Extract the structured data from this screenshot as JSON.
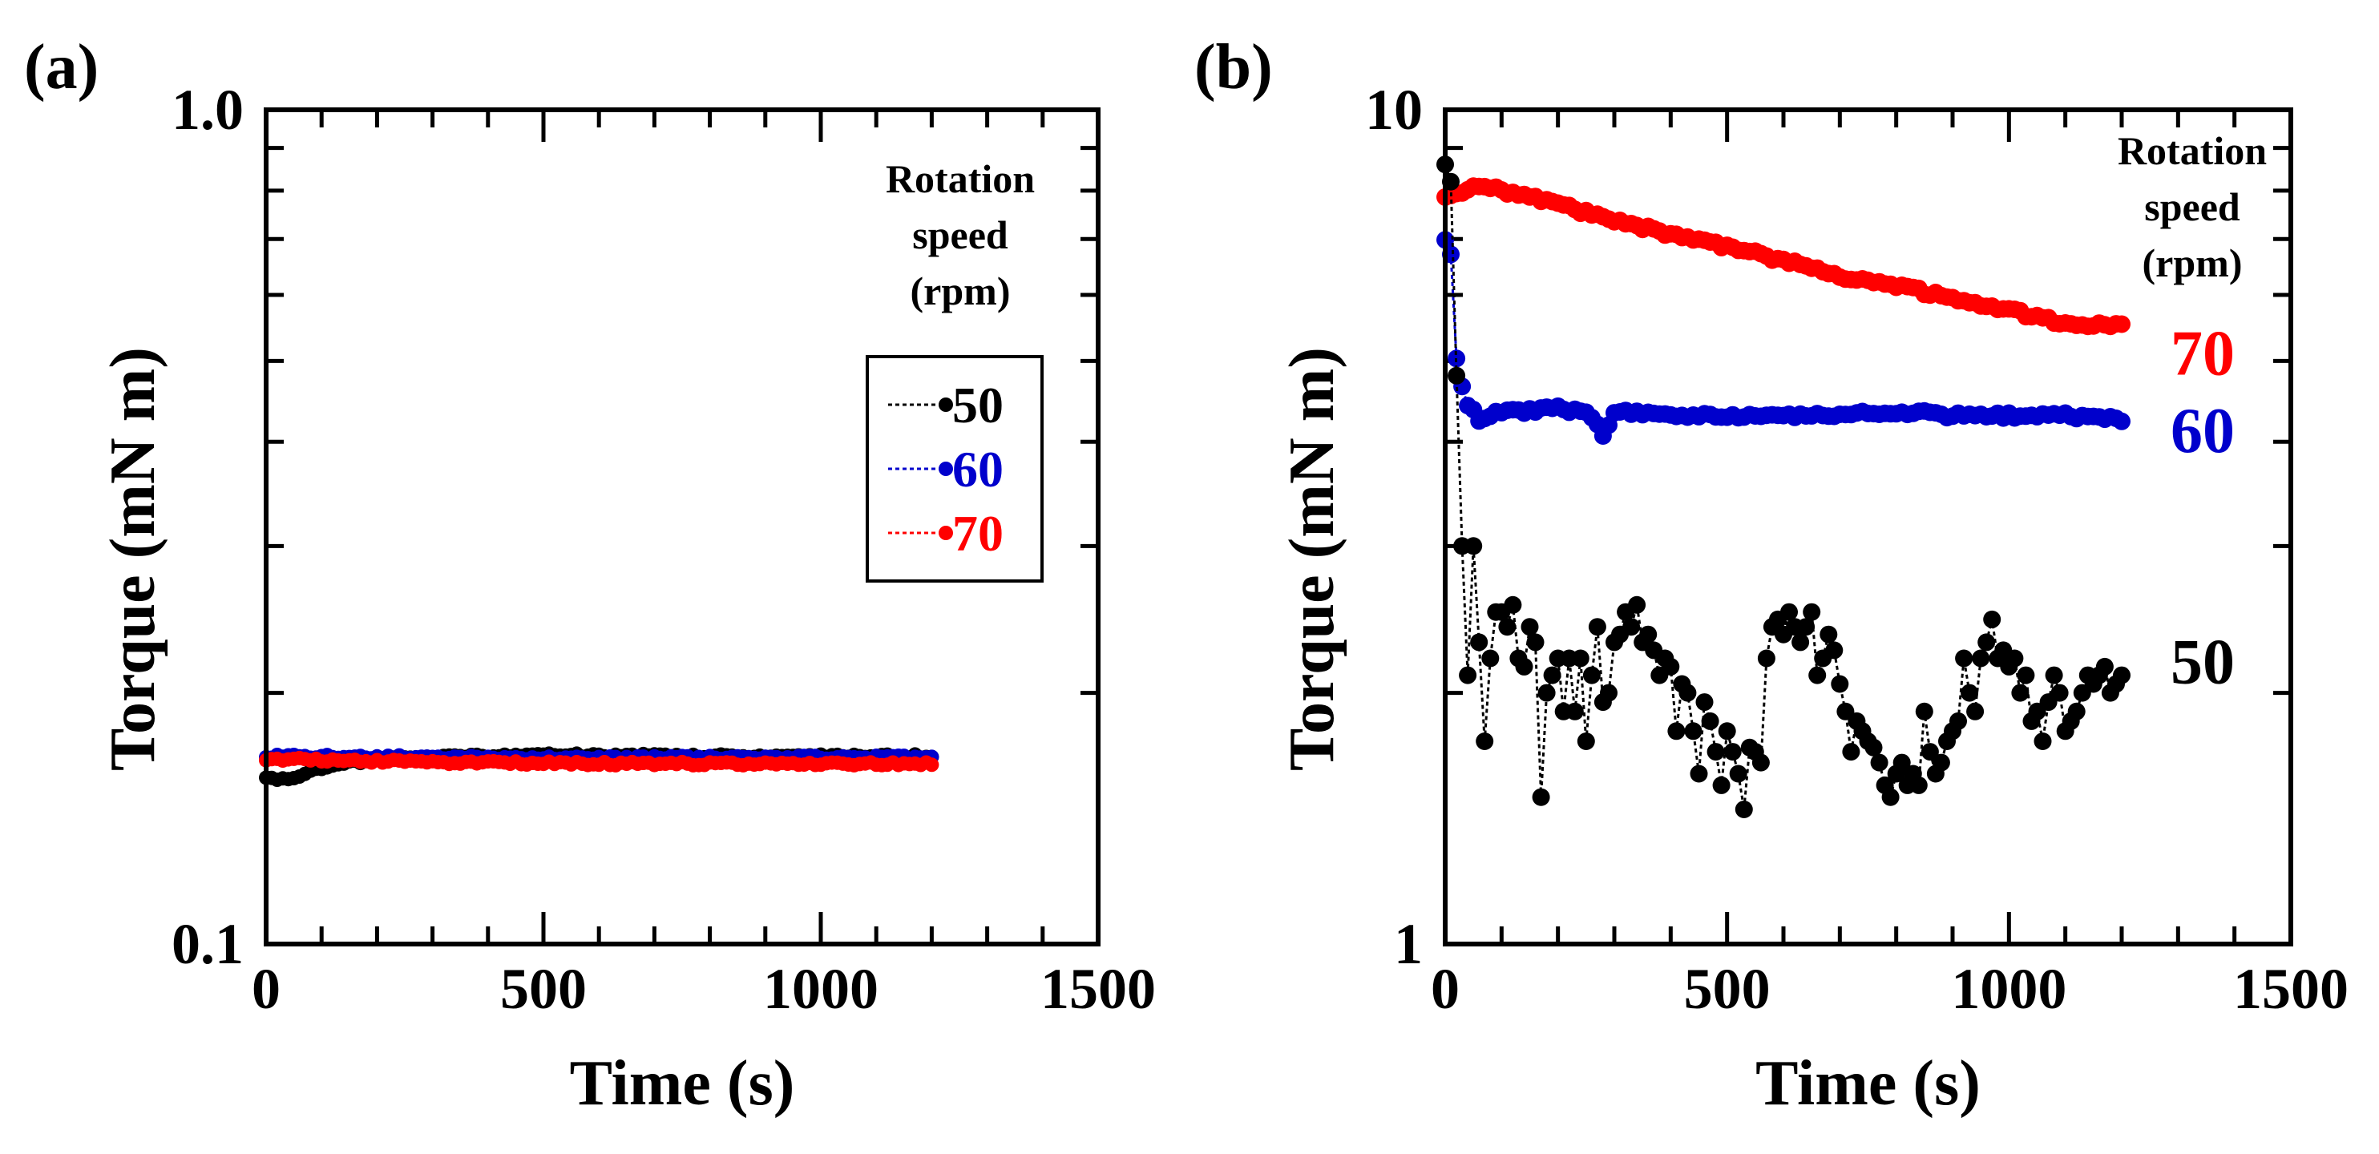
{
  "chart_data": [
    {
      "panel": "(a)",
      "type": "line",
      "marker": "dot",
      "yscale": "log",
      "xlabel": "Time  (s)",
      "ylabel": "Torque  (mN m)",
      "xlim": [
        0,
        1500
      ],
      "ylim": [
        0.1,
        1.0
      ],
      "xticks": [
        "0",
        "500",
        "1000",
        "1500"
      ],
      "yticks": [
        "0.1",
        "1.0"
      ],
      "legend": {
        "title": [
          "Rotation",
          "speed",
          "(rpm)"
        ],
        "placement": "right",
        "boxed": true,
        "entries": [
          "50",
          "60",
          "70"
        ]
      },
      "series": [
        {
          "name": "50",
          "color": "#000000",
          "sample_interval_s": 10,
          "x_start": 0,
          "x_end": 1200,
          "key_points": [
            [
              0,
              0.159
            ],
            [
              10,
              0.1575
            ],
            [
              20,
              0.157
            ],
            [
              40,
              0.1575
            ],
            [
              80,
              0.161
            ],
            [
              120,
              0.164
            ],
            [
              200,
              0.1665
            ],
            [
              300,
              0.1675
            ],
            [
              500,
              0.1685
            ],
            [
              800,
              0.168
            ],
            [
              1200,
              0.168
            ]
          ]
        },
        {
          "name": "60",
          "color": "#0000cc",
          "sample_interval_s": 10,
          "x_start": 0,
          "x_end": 1200,
          "key_points": [
            [
              0,
              0.168
            ],
            [
              300,
              0.1675
            ],
            [
              600,
              0.167
            ],
            [
              900,
              0.1675
            ],
            [
              1200,
              0.1675
            ]
          ]
        },
        {
          "name": "70",
          "color": "#ff0000",
          "sample_interval_s": 10,
          "x_start": 0,
          "x_end": 1200,
          "key_points": [
            [
              0,
              0.1668
            ],
            [
              300,
              0.1652
            ],
            [
              600,
              0.1645
            ],
            [
              900,
              0.1645
            ],
            [
              1200,
              0.1645
            ]
          ]
        }
      ]
    },
    {
      "panel": "(b)",
      "type": "line",
      "marker": "dot",
      "yscale": "log",
      "xlabel": "Time  (s)",
      "ylabel": "Torque  (mN m)",
      "xlim": [
        0,
        1500
      ],
      "ylim": [
        1,
        10
      ],
      "xticks": [
        "0",
        "500",
        "1000",
        "1500"
      ],
      "yticks": [
        "1",
        "10"
      ],
      "legend": {
        "title": [
          "Rotation",
          "speed",
          "(rpm)"
        ],
        "placement": "right",
        "boxed": false,
        "entries": [
          "70",
          "60",
          "50"
        ]
      },
      "series": [
        {
          "name": "70",
          "color": "#ff0000",
          "sample_interval_s": 10,
          "x_start": 0,
          "x_end": 1200,
          "key_points": [
            [
              0,
              7.9
            ],
            [
              30,
              8.0
            ],
            [
              60,
              8.1
            ],
            [
              100,
              8.0
            ],
            [
              200,
              7.7
            ],
            [
              300,
              7.35
            ],
            [
              400,
              7.1
            ],
            [
              500,
              6.85
            ],
            [
              600,
              6.6
            ],
            [
              700,
              6.3
            ],
            [
              800,
              6.15
            ],
            [
              900,
              5.95
            ],
            [
              1000,
              5.75
            ],
            [
              1100,
              5.55
            ],
            [
              1200,
              5.5
            ]
          ]
        },
        {
          "name": "60",
          "color": "#0000cc",
          "sample_interval_s": 10,
          "x_start": 0,
          "x_end": 1200,
          "key_points": [
            [
              0,
              7.0
            ],
            [
              10,
              6.7
            ],
            [
              20,
              5.0
            ],
            [
              30,
              4.65
            ],
            [
              40,
              4.45
            ],
            [
              50,
              4.35
            ],
            [
              60,
              4.25
            ],
            [
              100,
              4.35
            ],
            [
              160,
              4.35
            ],
            [
              200,
              4.4
            ],
            [
              260,
              4.3
            ],
            [
              280,
              4.05
            ],
            [
              300,
              4.35
            ],
            [
              400,
              4.3
            ],
            [
              500,
              4.3
            ],
            [
              600,
              4.3
            ],
            [
              700,
              4.3
            ],
            [
              800,
              4.35
            ],
            [
              900,
              4.3
            ],
            [
              1000,
              4.3
            ],
            [
              1100,
              4.3
            ],
            [
              1200,
              4.25
            ]
          ]
        },
        {
          "name": "50",
          "color": "#000000",
          "sample_interval_s": 10,
          "x_start": 0,
          "x_end": 1200,
          "values": [
            8.6,
            8.2,
            4.8,
            3.0,
            2.1,
            3.0,
            2.3,
            1.75,
            2.2,
            2.5,
            2.5,
            2.4,
            2.55,
            2.2,
            2.15,
            2.4,
            2.3,
            1.5,
            2.0,
            2.1,
            2.2,
            1.9,
            2.2,
            1.9,
            2.2,
            1.75,
            2.1,
            2.4,
            1.95,
            2.0,
            2.3,
            2.35,
            2.5,
            2.4,
            2.55,
            2.3,
            2.35,
            2.25,
            2.1,
            2.2,
            2.15,
            1.8,
            2.05,
            2.0,
            1.8,
            1.6,
            1.95,
            1.85,
            1.7,
            1.55,
            1.8,
            1.7,
            1.6,
            1.45,
            1.72,
            1.7,
            1.65,
            2.2,
            2.4,
            2.45,
            2.35,
            2.5,
            2.4,
            2.3,
            2.4,
            2.5,
            2.1,
            2.2,
            2.35,
            2.25,
            2.05,
            1.9,
            1.7,
            1.85,
            1.8,
            1.75,
            1.72,
            1.65,
            1.55,
            1.5,
            1.6,
            1.65,
            1.55,
            1.6,
            1.55,
            1.9,
            1.7,
            1.6,
            1.65,
            1.75,
            1.8,
            1.85,
            2.2,
            2.0,
            1.9,
            2.2,
            2.3,
            2.45,
            2.2,
            2.25,
            2.15,
            2.2,
            2.0,
            2.1,
            1.85,
            1.9,
            1.75,
            1.95,
            2.1,
            2.0,
            1.8,
            1.85,
            1.9,
            2.0,
            2.1,
            2.05,
            2.1,
            2.15,
            2.0,
            2.05,
            2.1
          ]
        }
      ]
    }
  ]
}
